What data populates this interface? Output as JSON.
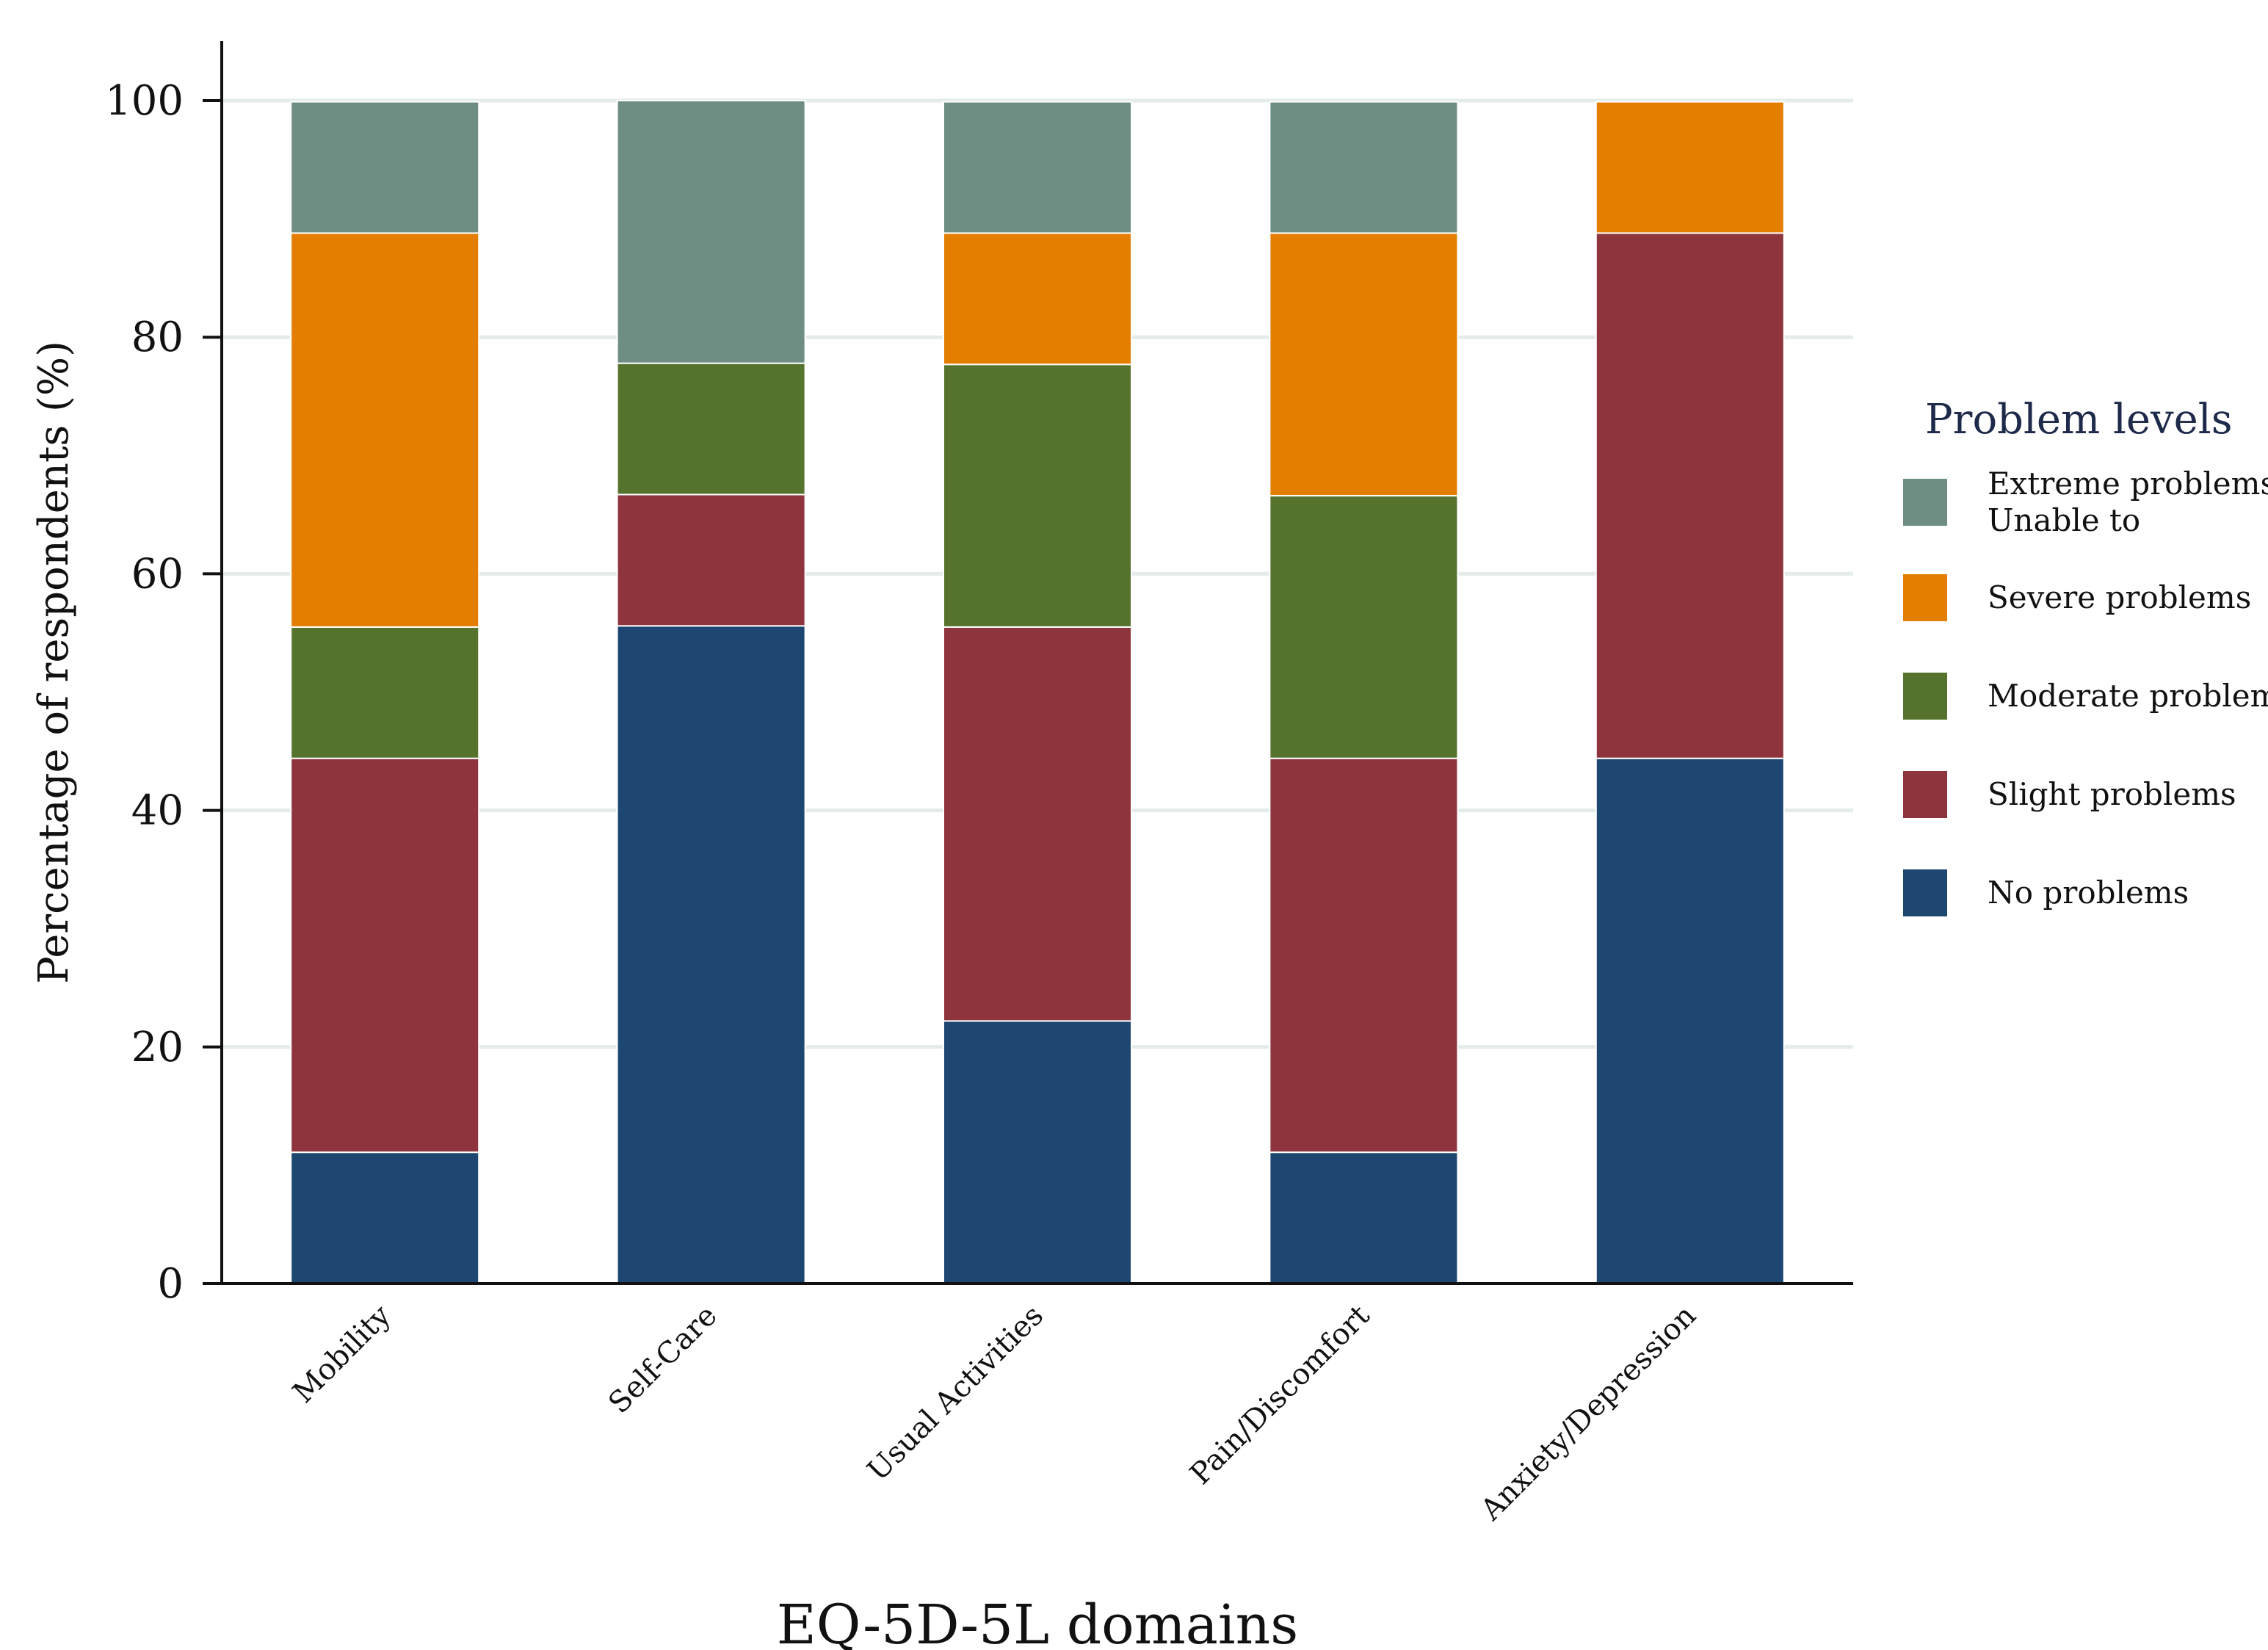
{
  "chart_data": {
    "type": "bar",
    "stacked": true,
    "title": "",
    "xlabel": "EQ-5D-5L domains",
    "ylabel": "Percentage of respondents (%)",
    "ylim": [
      0,
      100
    ],
    "yticks": [
      0,
      20,
      40,
      60,
      80,
      100
    ],
    "yticks_text": [
      "0",
      "20",
      "40",
      "60",
      "80",
      "100"
    ],
    "grid": "horizontal",
    "legend_position": "right",
    "legend_title": "Problem levels",
    "categories": [
      "Mobility",
      "Self-Care",
      "Usual Activities",
      "Pain/Discomfort",
      "Anxiety/Depression"
    ],
    "series": [
      {
        "name": "No problems",
        "color": "#1d4670",
        "values": [
          11.1,
          55.6,
          22.2,
          11.1,
          44.4
        ]
      },
      {
        "name": "Slight problems",
        "color": "#8e343c",
        "values": [
          33.3,
          11.1,
          33.3,
          33.3,
          44.4
        ]
      },
      {
        "name": "Moderate problems",
        "color": "#55732d",
        "values": [
          11.1,
          11.1,
          22.2,
          22.2,
          0
        ]
      },
      {
        "name": "Severe problems",
        "color": "#e37e00",
        "values": [
          33.3,
          0,
          11.1,
          22.2,
          11.1
        ]
      },
      {
        "name": "Extreme problems/ Unable to",
        "color": "#6e8e84",
        "values": [
          11.1,
          22.2,
          11.1,
          11.1,
          0
        ]
      }
    ],
    "legend_order": [
      {
        "series_index": 4,
        "lines": [
          "Extreme problems/",
          "Unable to"
        ]
      },
      {
        "series_index": 3,
        "lines": [
          "Severe problems"
        ]
      },
      {
        "series_index": 2,
        "lines": [
          "Moderate problems"
        ]
      },
      {
        "series_index": 1,
        "lines": [
          "Slight problems"
        ]
      },
      {
        "series_index": 0,
        "lines": [
          "No problems"
        ]
      }
    ]
  }
}
